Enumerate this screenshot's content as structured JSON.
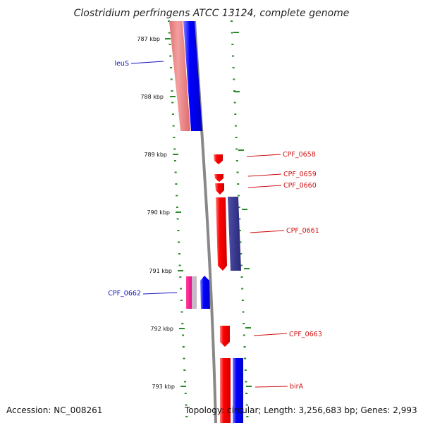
{
  "header": {
    "title": "Clostridium perfringens ATCC 13124, complete genome"
  },
  "footer": {
    "accession": "Accession: NC_008261",
    "topology": "Topology: circular; Length: 3,256,683 bp; Genes: 2,993"
  },
  "ruler": {
    "labels": [
      "787 kbp",
      "788 kbp",
      "789 kbp",
      "790 kbp",
      "791 kbp",
      "792 kbp",
      "793 kbp"
    ]
  },
  "genes": {
    "leuS": "leuS",
    "cpf0658": "CPF_0658",
    "cpf0659": "CPF_0659",
    "cpf0660": "CPF_0660",
    "cpf0661": "CPF_0661",
    "cpf0662": "CPF_0662",
    "cpf0663": "CPF_0663",
    "birA": "birA"
  },
  "colors": {
    "forward_strand": "#ff0000",
    "reverse_strand": "#0000ff",
    "forward_label": "#d01010",
    "reverse_label": "#1010c0",
    "backbone": "#888888",
    "tick": "#2a8a2a"
  }
}
